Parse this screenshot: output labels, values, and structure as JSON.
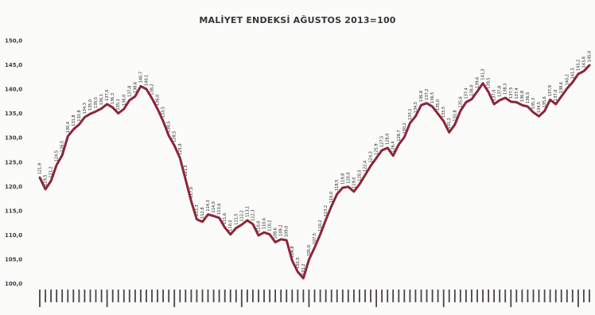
{
  "chart_data": {
    "type": "line",
    "title": "MALİYET ENDEKSİ AĞUSTOS 2013=100",
    "xlabel": "",
    "ylabel": "",
    "ylim": [
      100,
      145
    ],
    "yticks": [
      "100,0",
      "105,0",
      "110,0",
      "115,0",
      "120,0",
      "125,0",
      "130,0",
      "135,0",
      "140,0",
      "145,0",
      "150,0"
    ],
    "grid": false,
    "legend": "none",
    "colors": {
      "line": "#8c2637",
      "background": "#fbfbfa",
      "text": "#3a3436"
    },
    "series": [
      {
        "values": [
          121.9,
          119.5,
          121.2,
          124.5,
          126.5,
          130.4,
          131.8,
          132.8,
          134.3,
          135.0,
          135.5,
          136.1,
          137.0,
          136.3,
          135.1,
          136.0,
          137.8,
          138.6,
          140.7,
          140.1,
          138.2,
          136.0,
          133.5,
          130.5,
          128.5,
          125.9,
          121.5,
          117.0,
          113.3,
          112.8,
          114.3,
          114.0,
          113.6,
          111.6,
          110.2,
          111.5,
          112.2,
          113.1,
          112.3,
          110.0,
          110.6,
          110.2,
          108.6,
          109.2,
          109.0,
          104.8,
          102.5,
          101.2,
          105.0,
          107.5,
          110.2,
          113.2,
          116.0,
          118.5,
          119.8,
          120.0,
          119.0,
          120.5,
          122.4,
          124.3,
          125.9,
          127.5,
          128.0,
          126.4,
          128.7,
          130.2,
          133.1,
          134.5,
          136.8,
          137.2,
          136.5,
          135.0,
          133.5,
          131.2,
          132.8,
          135.6,
          137.4,
          138.0,
          139.6,
          141.3,
          139.5,
          137.0,
          137.8,
          138.3,
          137.5,
          137.4,
          136.8,
          136.5,
          135.3,
          134.5,
          135.6,
          137.9,
          137.0,
          138.6,
          140.2,
          141.5,
          143.2,
          143.8,
          145.0
        ]
      }
    ]
  }
}
